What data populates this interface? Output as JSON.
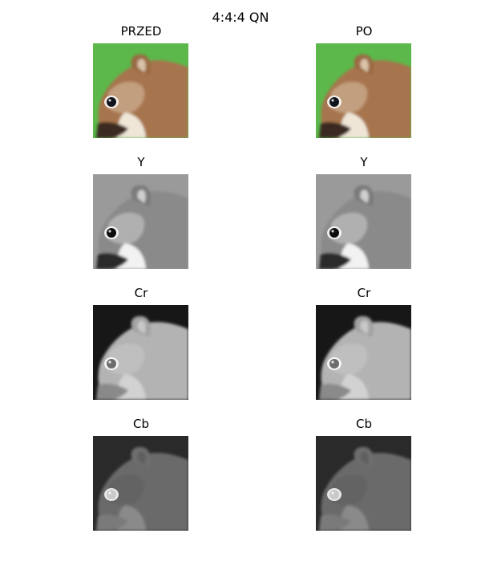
{
  "figure": {
    "title": "4:4:4 QN",
    "panels": [
      {
        "title": "PRZED",
        "kind": "color"
      },
      {
        "title": "PO",
        "kind": "color"
      },
      {
        "title": "Y",
        "kind": "luma"
      },
      {
        "title": "Y",
        "kind": "luma"
      },
      {
        "title": "Cr",
        "kind": "cr"
      },
      {
        "title": "Cr",
        "kind": "cr"
      },
      {
        "title": "Cb",
        "kind": "cb"
      },
      {
        "title": "Cb",
        "kind": "cb"
      }
    ]
  },
  "colors": {
    "background_green": "#5cb84a",
    "fur_brown": "#a7744d",
    "fur_light": "#d9c2a8",
    "eye": "#11141c"
  }
}
